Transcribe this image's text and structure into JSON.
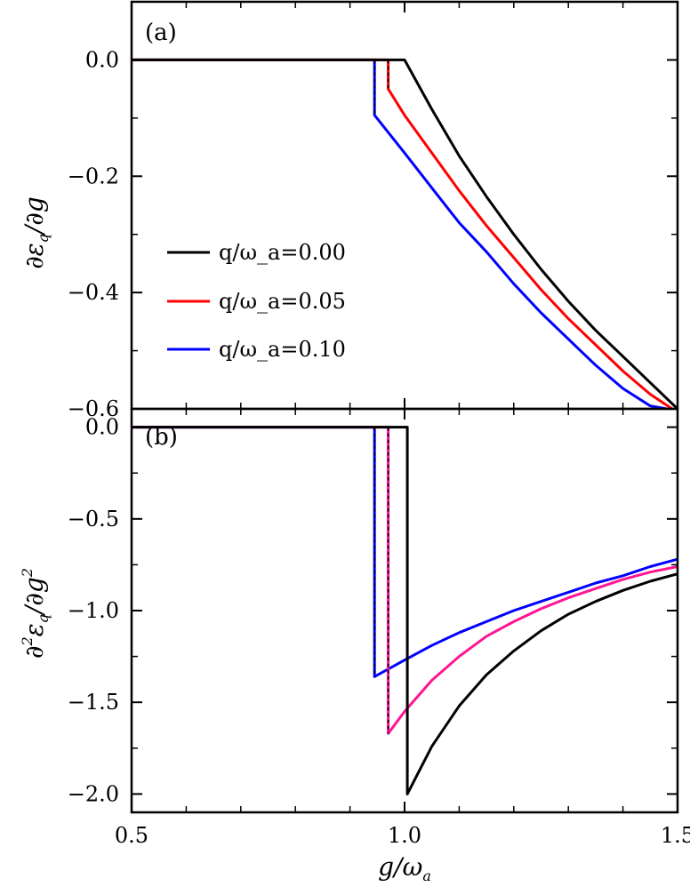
{
  "chart_data": [
    {
      "type": "line",
      "panel_label": "(a)",
      "ylabel": "∂ε_q/∂g",
      "xlim": [
        0.5,
        1.5
      ],
      "ylim": [
        -0.6,
        0.1
      ],
      "y_ticks": [
        0.0,
        -0.2,
        -0.4,
        -0.6
      ],
      "y_tick_labels": [
        "0.0",
        "−0.2",
        "−0.4",
        "−0.6"
      ],
      "legend": {
        "position": "center-left",
        "entries": [
          {
            "text": "q/ω_a=0.00",
            "color": "#000000"
          },
          {
            "text": "q/ω_a=0.05",
            "color": "#ff0000"
          },
          {
            "text": "q/ω_a=0.10",
            "color": "#0000ff"
          }
        ]
      },
      "dashed_markers": [
        {
          "x": 0.945,
          "y_from": 0.0,
          "y_to": -0.095
        },
        {
          "x": 0.97,
          "y_from": 0.0,
          "y_to": -0.05
        }
      ],
      "series": [
        {
          "name": "q/ω_a=0.00",
          "color": "#000000",
          "x": [
            0.5,
            1.0,
            1.05,
            1.1,
            1.15,
            1.2,
            1.25,
            1.3,
            1.35,
            1.4,
            1.45,
            1.5
          ],
          "y": [
            0.0,
            0.0,
            -0.085,
            -0.165,
            -0.235,
            -0.3,
            -0.36,
            -0.415,
            -0.465,
            -0.51,
            -0.555,
            -0.6
          ]
        },
        {
          "name": "q/ω_a=0.05",
          "color": "#ff0000",
          "x": [
            0.5,
            0.97,
            0.97,
            1.0,
            1.05,
            1.1,
            1.15,
            1.2,
            1.25,
            1.3,
            1.35,
            1.4,
            1.45,
            1.49
          ],
          "y": [
            0.0,
            0.0,
            -0.05,
            -0.095,
            -0.16,
            -0.225,
            -0.285,
            -0.34,
            -0.395,
            -0.445,
            -0.49,
            -0.535,
            -0.575,
            -0.6
          ]
        },
        {
          "name": "q/ω_a=0.10",
          "color": "#0000ff",
          "x": [
            0.5,
            0.945,
            0.945,
            1.0,
            1.05,
            1.1,
            1.15,
            1.2,
            1.25,
            1.3,
            1.35,
            1.4,
            1.45,
            1.48
          ],
          "y": [
            0.0,
            0.0,
            -0.095,
            -0.16,
            -0.22,
            -0.28,
            -0.33,
            -0.385,
            -0.435,
            -0.48,
            -0.525,
            -0.565,
            -0.595,
            -0.6
          ]
        }
      ]
    },
    {
      "type": "line",
      "panel_label": "(b)",
      "xlabel": "g/ω_a",
      "ylabel": "∂²ε_q/∂g²",
      "xlim": [
        0.5,
        1.5
      ],
      "ylim": [
        -2.1,
        0.1
      ],
      "x_ticks": [
        0.5,
        1.0,
        1.5
      ],
      "x_tick_labels": [
        "0.5",
        "1.0",
        "1.5"
      ],
      "y_ticks": [
        0.0,
        -0.5,
        -1.0,
        -1.5,
        -2.0
      ],
      "y_tick_labels": [
        "0.0",
        "−0.5",
        "−1.0",
        "−1.5",
        "−2.0"
      ],
      "dashed_markers": [
        {
          "x": 0.945,
          "y_from": 0.0,
          "y_to": -1.36
        },
        {
          "x": 0.97,
          "y_from": 0.0,
          "y_to": -1.67
        },
        {
          "x": 1.005,
          "y_from": 0.0,
          "y_to": -2.0
        }
      ],
      "series": [
        {
          "name": "q/ω_a=0.00",
          "color": "#000000",
          "x": [
            0.5,
            1.005,
            1.005,
            1.05,
            1.1,
            1.15,
            1.2,
            1.25,
            1.3,
            1.35,
            1.4,
            1.45,
            1.5
          ],
          "y": [
            0.0,
            0.0,
            -2.0,
            -1.74,
            -1.52,
            -1.35,
            -1.22,
            -1.11,
            -1.02,
            -0.95,
            -0.89,
            -0.84,
            -0.8
          ]
        },
        {
          "name": "q/ω_a=0.05",
          "color": "#ff1493",
          "x": [
            0.5,
            0.97,
            0.97,
            1.0,
            1.05,
            1.1,
            1.15,
            1.2,
            1.25,
            1.3,
            1.35,
            1.4,
            1.45,
            1.5
          ],
          "y": [
            0.0,
            0.0,
            -1.67,
            -1.55,
            -1.38,
            -1.25,
            -1.14,
            -1.06,
            -0.99,
            -0.93,
            -0.88,
            -0.83,
            -0.79,
            -0.76
          ]
        },
        {
          "name": "q/ω_a=0.10",
          "color": "#0000ff",
          "x": [
            0.5,
            0.945,
            0.945,
            1.0,
            1.05,
            1.1,
            1.15,
            1.2,
            1.25,
            1.3,
            1.35,
            1.4,
            1.45,
            1.5
          ],
          "y": [
            0.0,
            0.0,
            -1.36,
            -1.27,
            -1.19,
            -1.12,
            -1.06,
            -1.0,
            -0.95,
            -0.9,
            -0.85,
            -0.81,
            -0.76,
            -0.72
          ]
        }
      ]
    }
  ]
}
